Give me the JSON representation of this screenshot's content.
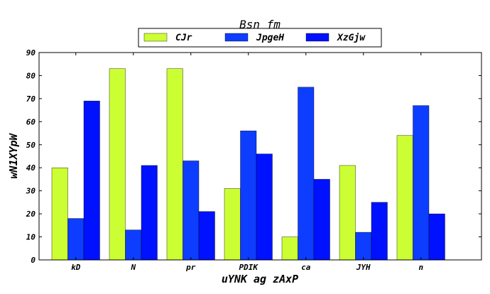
{
  "chart_data": {
    "type": "bar",
    "title": "Bsn fm",
    "xlabel": "uYNK ag zAxP",
    "ylabel": "wN1XYpW",
    "categories": [
      "kD",
      "N",
      "pr",
      "PDIK",
      "ca",
      "JYH",
      "n"
    ],
    "series": [
      {
        "name": "CJr",
        "color": "#ccff33",
        "values": [
          40,
          83,
          83,
          31,
          10,
          41,
          54
        ]
      },
      {
        "name": "JpgeH",
        "color": "#0d3dff",
        "values": [
          18,
          13,
          43,
          56,
          75,
          12,
          67
        ]
      },
      {
        "name": "XzGjw",
        "color": "#0011ff",
        "values": [
          69,
          41,
          21,
          46,
          35,
          25,
          20
        ]
      }
    ],
    "ylim": [
      0,
      90
    ],
    "yticks": [
      0,
      10,
      20,
      30,
      40,
      50,
      60,
      70,
      80,
      90
    ],
    "grid": false,
    "legend_position": "top-center"
  }
}
